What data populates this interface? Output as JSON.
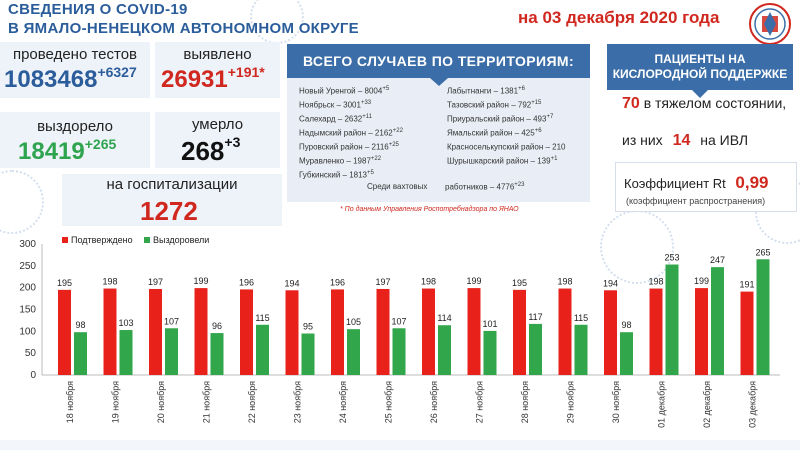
{
  "header": {
    "title_line1": "СВЕДЕНИЯ О COVID-19",
    "title_line2": "В ЯМАЛО-НЕНЕЦКОМ АВТОНОМНОМ ОКРУГЕ",
    "date": "на 03 декабря 2020 года"
  },
  "stats": {
    "tests_label": "проведено тестов",
    "tests_value": "1083468",
    "tests_delta": "+6327",
    "detected_label": "выявлено",
    "detected_value": "26931",
    "detected_delta": "+191*",
    "recovered_label": "выздорело",
    "recovered_value": "18419",
    "recovered_delta": "+265",
    "died_label": "умерло",
    "died_value": "268",
    "died_delta": "+3",
    "hospital_label": "на госпитализации",
    "hospital_value": "1272"
  },
  "territory": {
    "title": "ВСЕГО СЛУЧАЕВ ПО ТЕРРИТОРИЯМ:",
    "left": [
      {
        "name": "Новый Уренгой – 8004",
        "delta": "+5"
      },
      {
        "name": "Ноябрьск – 3001",
        "delta": "+33"
      },
      {
        "name": "Салехард – 2632",
        "delta": "+11"
      },
      {
        "name": "Надымский район – 2162",
        "delta": "+22"
      },
      {
        "name": "Пуровский район – 2116",
        "delta": "+25"
      },
      {
        "name": "Муравленко – 1987",
        "delta": "+22"
      },
      {
        "name": "Губкинский – 1813",
        "delta": "+5"
      }
    ],
    "right": [
      {
        "name": "Лабытнанги – 1381",
        "delta": "+6"
      },
      {
        "name": "Тазовский район – 792",
        "delta": "+15"
      },
      {
        "name": "Приуральский район – 493",
        "delta": "+7"
      },
      {
        "name": "Ямальский район – 425",
        "delta": "+6"
      },
      {
        "name": "Красноселькупский район – 210",
        "delta": ""
      },
      {
        "name": "Шурышкарский район – 139",
        "delta": "+1"
      }
    ],
    "shift_text_a": "Среди вахтовых",
    "shift_text_b": "работников – 4776",
    "shift_delta": "+23",
    "source_note": "* По данным Управления Роспотребнадзора по ЯНАО"
  },
  "oxygen": {
    "title_line1": "ПАЦИЕНТЫ НА",
    "title_line2": "КИСЛОРОДНОЙ ПОДДЕРЖКЕ",
    "severe_value": "70",
    "severe_text": "в тяжелом состоянии,",
    "ivl_prefix": "из них",
    "ivl_value": "14",
    "ivl_suffix": "на ИВЛ",
    "rt_label": "Коэффициент Rt",
    "rt_value": "0,99",
    "rt_note": "(коэффициент распространения)"
  },
  "colors": {
    "confirmed": "#e8221b",
    "recovered": "#32a64a",
    "brand_blue": "#3b6ea8"
  },
  "chart_data": {
    "type": "bar",
    "categories": [
      "18 ноября",
      "19 ноября",
      "20 ноября",
      "21 ноября",
      "22 ноября",
      "23 ноября",
      "24 ноября",
      "25 ноября",
      "26 ноября",
      "27 ноября",
      "28 ноября",
      "29 ноября",
      "30 ноября",
      "01 декабря",
      "02 декабря",
      "03 декабря"
    ],
    "series": [
      {
        "name": "Подтверждено",
        "values": [
          195,
          198,
          197,
          199,
          196,
          194,
          196,
          197,
          198,
          199,
          195,
          198,
          194,
          198,
          199,
          191
        ]
      },
      {
        "name": "Выздоровели",
        "values": [
          98,
          103,
          107,
          96,
          115,
          95,
          105,
          107,
          114,
          101,
          117,
          115,
          98,
          253,
          247,
          265
        ]
      }
    ],
    "yticks": [
      "0",
      "50",
      "100",
      "150",
      "200",
      "250",
      "300"
    ],
    "ylim": [
      0,
      300
    ],
    "grid": false,
    "legend": "top-left"
  }
}
